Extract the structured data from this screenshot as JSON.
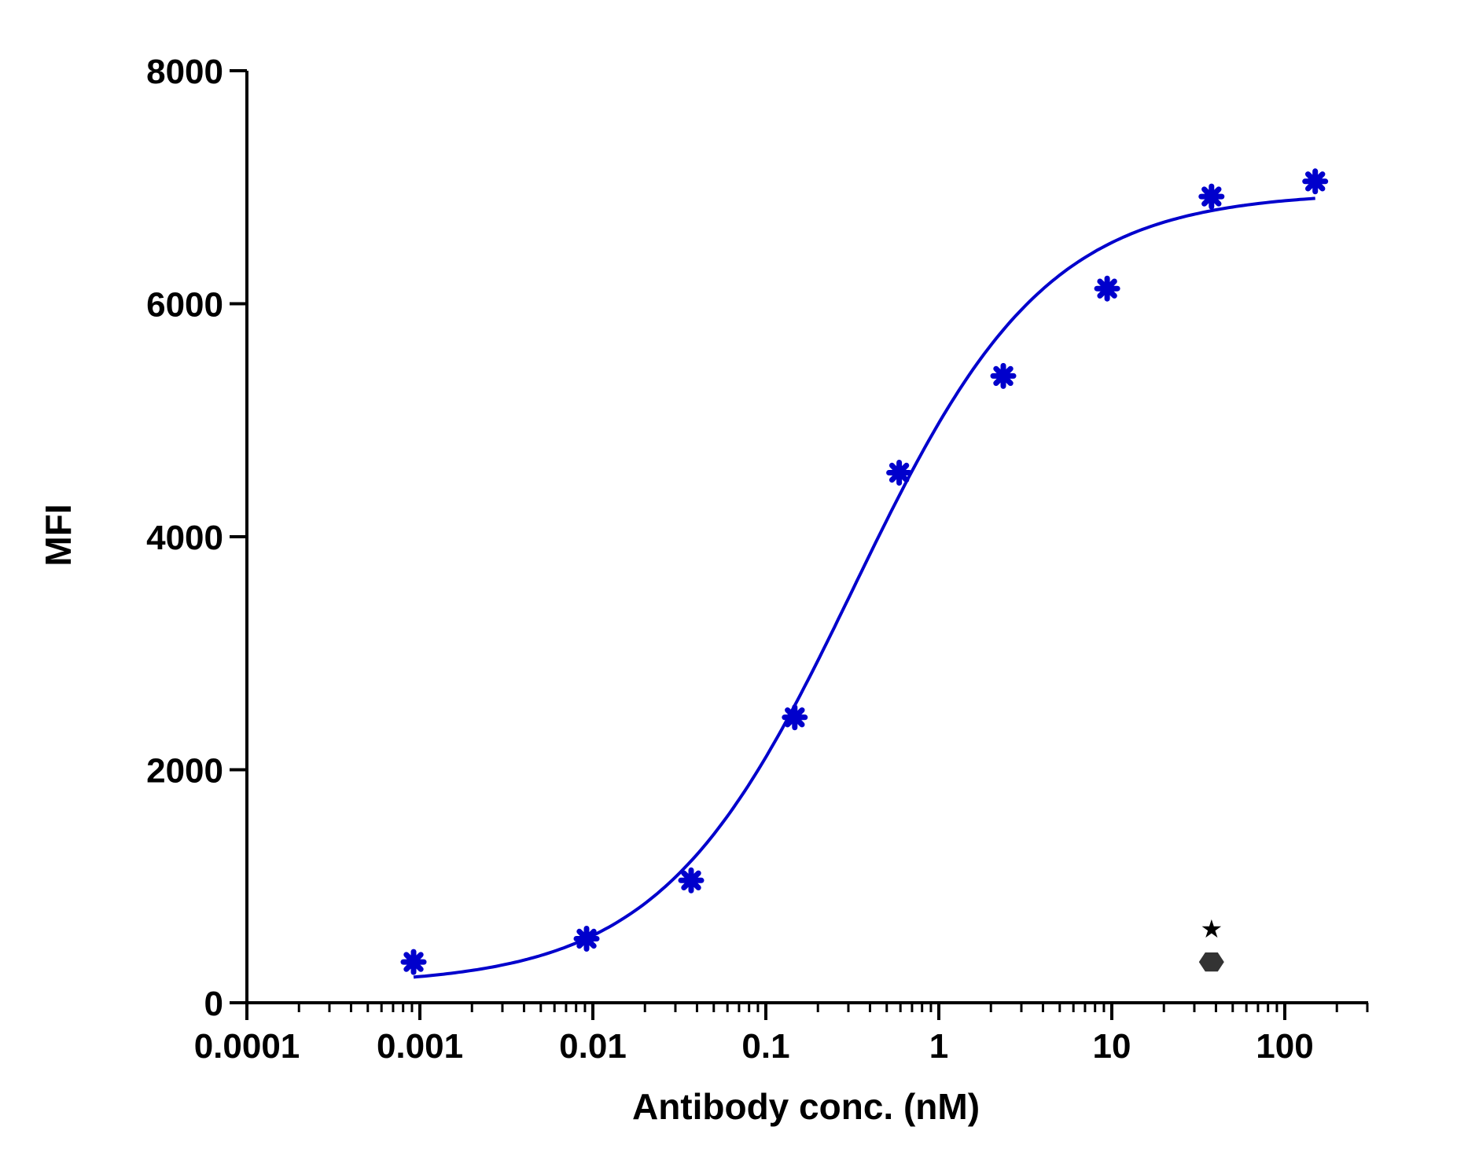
{
  "chart_data": {
    "type": "scatter",
    "title": "",
    "xlabel": "Antibody conc. (nM)",
    "ylabel": "MFI",
    "x_scale": "log",
    "xlim": [
      0.0001,
      320
    ],
    "ylim": [
      0,
      8000
    ],
    "x_ticks": [
      {
        "value": 0.0001,
        "label": "0.0001"
      },
      {
        "value": 0.001,
        "label": "0.001"
      },
      {
        "value": 0.01,
        "label": "0.01"
      },
      {
        "value": 0.1,
        "label": "0.1"
      },
      {
        "value": 1,
        "label": "1"
      },
      {
        "value": 10,
        "label": "10"
      },
      {
        "value": 100,
        "label": "100"
      }
    ],
    "y_ticks": [
      {
        "value": 0,
        "label": "0"
      },
      {
        "value": 2000,
        "label": "2000"
      },
      {
        "value": 4000,
        "label": "4000"
      },
      {
        "value": 6000,
        "label": "6000"
      },
      {
        "value": 8000,
        "label": "8000"
      }
    ],
    "grid": false,
    "series": [
      {
        "color": "#0000cc",
        "marker": "asterisk",
        "x": [
          0.00092,
          0.0092,
          0.037,
          0.147,
          0.59,
          2.36,
          9.4,
          37.7,
          150
        ],
        "y": [
          350,
          550,
          1050,
          2450,
          4550,
          5380,
          6130,
          6920,
          7050
        ],
        "fit": {
          "model": "4PL",
          "bottom": 150,
          "top": 6960,
          "ec50": 0.32,
          "hill": 0.78,
          "x_range": [
            0.00092,
            150
          ]
        }
      },
      {
        "color": "#333333",
        "marker": "hexagon",
        "x": [
          37.7
        ],
        "y": [
          350
        ]
      }
    ],
    "annotations": [
      {
        "text": "★",
        "x": 37.7,
        "y": 640
      }
    ]
  }
}
